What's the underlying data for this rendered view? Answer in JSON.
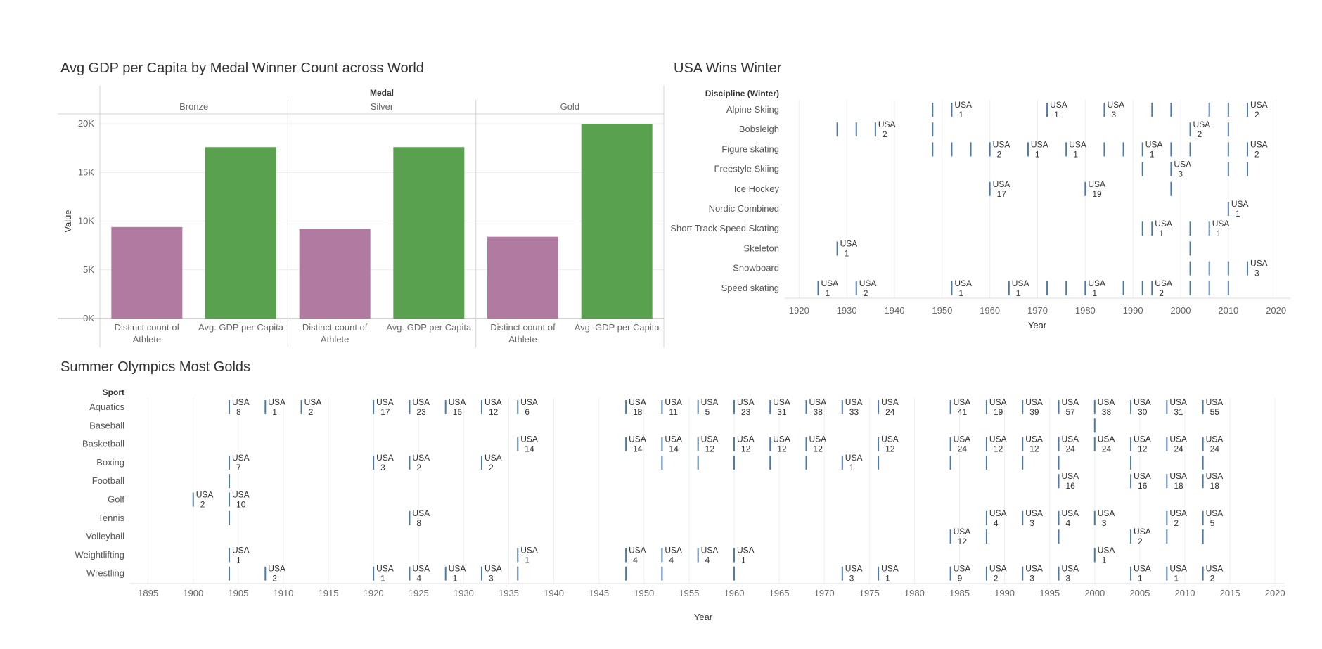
{
  "chart_data": [
    {
      "type": "bar",
      "title": "Avg GDP per Capita by Medal Winner Count across World",
      "column_header": "Medal",
      "ylabel": "Value",
      "ylim": [
        0,
        20000
      ],
      "y_ticks": [
        "0K",
        "5K",
        "10K",
        "15K",
        "20K"
      ],
      "y_tick_values": [
        0,
        5000,
        10000,
        15000,
        20000
      ],
      "panels": [
        "Bronze",
        "Silver",
        "Gold"
      ],
      "measures": [
        {
          "name": "Distinct count of Athlete",
          "line1": "Distinct count of",
          "line2": "Athlete",
          "color": "#b07aa1"
        },
        {
          "name": "Avg. GDP per Capita",
          "line1": "Avg. GDP per Capita",
          "line2": "",
          "color": "#59a14f"
        }
      ],
      "values": [
        [
          9400,
          17600
        ],
        [
          9200,
          17600
        ],
        [
          8400,
          20000
        ]
      ],
      "grid": true
    },
    {
      "type": "scatter",
      "title": "USA Wins Winter",
      "row_header": "Discipline (Winter)",
      "xlabel": "Year",
      "xlim": [
        1917,
        2023
      ],
      "x_ticks": [
        1920,
        1930,
        1940,
        1950,
        1960,
        1970,
        1980,
        1990,
        2000,
        2010,
        2020
      ],
      "rows": [
        "Alpine Skiing",
        "Bobsleigh",
        "Figure skating",
        "Freestyle Skiing",
        "Ice Hockey",
        "Nordic Combined",
        "Short Track Speed Skating",
        "Skeleton",
        "Snowboard",
        "Speed skating"
      ],
      "marker_color": "#4e79a7",
      "label_country": "USA",
      "marks": [
        [
          [
            1948,
            null
          ],
          [
            1952,
            1
          ],
          [
            1972,
            1
          ],
          [
            1984,
            3
          ],
          [
            1994,
            null
          ],
          [
            1998,
            null
          ],
          [
            2006,
            null
          ],
          [
            2010,
            null
          ],
          [
            2014,
            2
          ]
        ],
        [
          [
            1928,
            null
          ],
          [
            1932,
            null
          ],
          [
            1936,
            2
          ],
          [
            1948,
            null
          ],
          [
            2002,
            2
          ],
          [
            2010,
            null
          ]
        ],
        [
          [
            1948,
            null
          ],
          [
            1952,
            null
          ],
          [
            1956,
            null
          ],
          [
            1960,
            2
          ],
          [
            1968,
            1
          ],
          [
            1976,
            1
          ],
          [
            1984,
            null
          ],
          [
            1988,
            null
          ],
          [
            1992,
            1
          ],
          [
            1998,
            null
          ],
          [
            2002,
            null
          ],
          [
            2010,
            null
          ],
          [
            2014,
            2
          ]
        ],
        [
          [
            1992,
            null
          ],
          [
            1998,
            3
          ],
          [
            2010,
            null
          ],
          [
            2014,
            null
          ]
        ],
        [
          [
            1960,
            17
          ],
          [
            1980,
            19
          ],
          [
            1998,
            null
          ]
        ],
        [
          [
            2010,
            1
          ]
        ],
        [
          [
            1992,
            null
          ],
          [
            1994,
            1
          ],
          [
            2002,
            null
          ],
          [
            2006,
            1
          ]
        ],
        [
          [
            1928,
            1
          ],
          [
            2002,
            null
          ]
        ],
        [
          [
            2002,
            null
          ],
          [
            2006,
            null
          ],
          [
            2010,
            null
          ],
          [
            2014,
            3
          ]
        ],
        [
          [
            1924,
            1
          ],
          [
            1932,
            2
          ],
          [
            1952,
            1
          ],
          [
            1964,
            1
          ],
          [
            1972,
            null
          ],
          [
            1976,
            null
          ],
          [
            1980,
            1
          ],
          [
            1988,
            null
          ],
          [
            1992,
            null
          ],
          [
            1994,
            2
          ],
          [
            2002,
            null
          ],
          [
            2006,
            null
          ],
          [
            2010,
            null
          ]
        ]
      ]
    },
    {
      "type": "scatter",
      "title": "Summer Olympics Most Golds",
      "row_header": "Sport",
      "xlabel": "Year",
      "xlim": [
        1893,
        2021
      ],
      "x_ticks": [
        1895,
        1900,
        1905,
        1910,
        1915,
        1920,
        1925,
        1930,
        1935,
        1940,
        1945,
        1950,
        1955,
        1960,
        1965,
        1970,
        1975,
        1980,
        1985,
        1990,
        1995,
        2000,
        2005,
        2010,
        2015,
        2020
      ],
      "rows": [
        "Aquatics",
        "Baseball",
        "Basketball",
        "Boxing",
        "Football",
        "Golf",
        "Tennis",
        "Volleyball",
        "Weightlifting",
        "Wrestling"
      ],
      "marker_color": "#4e79a7",
      "label_country": "USA",
      "marks": [
        [
          [
            1904,
            8
          ],
          [
            1908,
            1
          ],
          [
            1912,
            2
          ],
          [
            1920,
            17
          ],
          [
            1924,
            23
          ],
          [
            1928,
            16
          ],
          [
            1932,
            12
          ],
          [
            1936,
            6
          ],
          [
            1948,
            18
          ],
          [
            1952,
            11
          ],
          [
            1956,
            5
          ],
          [
            1960,
            23
          ],
          [
            1964,
            31
          ],
          [
            1968,
            38
          ],
          [
            1972,
            33
          ],
          [
            1976,
            24
          ],
          [
            1984,
            41
          ],
          [
            1988,
            19
          ],
          [
            1992,
            39
          ],
          [
            1996,
            57
          ],
          [
            2000,
            38
          ],
          [
            2004,
            30
          ],
          [
            2008,
            31
          ],
          [
            2012,
            55
          ]
        ],
        [
          [
            2000,
            null
          ]
        ],
        [
          [
            1936,
            14
          ],
          [
            1948,
            14
          ],
          [
            1952,
            14
          ],
          [
            1956,
            12
          ],
          [
            1960,
            12
          ],
          [
            1964,
            12
          ],
          [
            1968,
            12
          ],
          [
            1976,
            12
          ],
          [
            1984,
            24
          ],
          [
            1988,
            12
          ],
          [
            1992,
            12
          ],
          [
            1996,
            24
          ],
          [
            2000,
            24
          ],
          [
            2004,
            12
          ],
          [
            2008,
            24
          ],
          [
            2012,
            24
          ]
        ],
        [
          [
            1904,
            7
          ],
          [
            1920,
            3
          ],
          [
            1924,
            2
          ],
          [
            1932,
            2
          ],
          [
            1952,
            null
          ],
          [
            1956,
            null
          ],
          [
            1960,
            null
          ],
          [
            1964,
            null
          ],
          [
            1968,
            null
          ],
          [
            1972,
            1
          ],
          [
            1976,
            null
          ],
          [
            1984,
            null
          ],
          [
            1988,
            null
          ],
          [
            1992,
            null
          ],
          [
            1996,
            null
          ],
          [
            2004,
            null
          ],
          [
            2012,
            null
          ]
        ],
        [
          [
            1904,
            null
          ],
          [
            1996,
            16
          ],
          [
            2004,
            16
          ],
          [
            2008,
            18
          ],
          [
            2012,
            18
          ]
        ],
        [
          [
            1900,
            2
          ],
          [
            1904,
            10
          ]
        ],
        [
          [
            1904,
            null
          ],
          [
            1924,
            8
          ],
          [
            1988,
            4
          ],
          [
            1992,
            3
          ],
          [
            1996,
            4
          ],
          [
            2000,
            3
          ],
          [
            2008,
            2
          ],
          [
            2012,
            5
          ]
        ],
        [
          [
            1984,
            12
          ],
          [
            1988,
            null
          ],
          [
            1996,
            null
          ],
          [
            2004,
            2
          ],
          [
            2008,
            null
          ],
          [
            2012,
            null
          ]
        ],
        [
          [
            1904,
            1
          ],
          [
            1936,
            1
          ],
          [
            1948,
            4
          ],
          [
            1952,
            4
          ],
          [
            1956,
            4
          ],
          [
            1960,
            1
          ],
          [
            2000,
            1
          ]
        ],
        [
          [
            1904,
            null
          ],
          [
            1908,
            2
          ],
          [
            1920,
            1
          ],
          [
            1924,
            4
          ],
          [
            1928,
            1
          ],
          [
            1932,
            3
          ],
          [
            1936,
            null
          ],
          [
            1948,
            null
          ],
          [
            1952,
            null
          ],
          [
            1960,
            null
          ],
          [
            1972,
            3
          ],
          [
            1976,
            1
          ],
          [
            1984,
            9
          ],
          [
            1988,
            2
          ],
          [
            1992,
            3
          ],
          [
            1996,
            3
          ],
          [
            2004,
            1
          ],
          [
            2008,
            1
          ],
          [
            2012,
            2
          ]
        ]
      ]
    }
  ]
}
